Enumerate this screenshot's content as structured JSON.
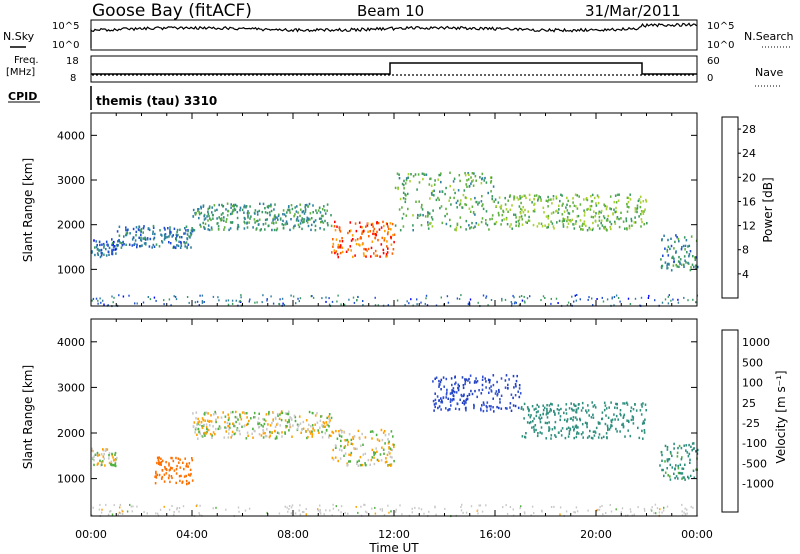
{
  "header": {
    "station": "Goose Bay (fitACF)",
    "beam": "Beam 10",
    "date": "31/Mar/2011"
  },
  "status_panel": {
    "nsky_label": "N.Sky",
    "nsky_ticks": [
      "10^5",
      "10^0"
    ],
    "nsearch_label": "N.Search",
    "nsearch_ticks": [
      "10^5",
      "10^0"
    ],
    "freq_label": "Freq.",
    "freq_unit": "[MHz]",
    "freq_ticks": [
      "18",
      "8"
    ],
    "nave_label": "Nave",
    "nave_ticks": [
      "60",
      "0"
    ],
    "cpid_label": "CPID",
    "cpid_value": "themis (tau) 3310"
  },
  "chart_data": [
    {
      "type": "heatmap",
      "title": "",
      "ylabel": "Slant Range [km]",
      "xlabel": "",
      "ylim": [
        180,
        4500
      ],
      "xlim_hours": [
        0,
        24
      ],
      "yticks": [
        "1000",
        "2000",
        "3000",
        "4000"
      ],
      "colorbar": {
        "label": "Power [dB]",
        "ticks": [
          "4",
          "8",
          "12",
          "16",
          "20",
          "24",
          "28"
        ],
        "range": [
          0,
          30
        ],
        "colors": [
          "#0000ff",
          "#1f4fd0",
          "#2f7fa0",
          "#3a9a60",
          "#60b040",
          "#a8d030",
          "#f0e020",
          "#ffa000",
          "#ff6000",
          "#ff0000"
        ]
      },
      "features": [
        {
          "x_start_hr": 0.0,
          "x_end_hr": 1.0,
          "range_km": [
            1300,
            1700
          ],
          "power_db": 6
        },
        {
          "x_start_hr": 1.0,
          "x_end_hr": 4.0,
          "range_km": [
            1500,
            2000
          ],
          "power_db": 7
        },
        {
          "x_start_hr": 4.0,
          "x_end_hr": 9.5,
          "range_km": [
            1900,
            2500
          ],
          "power_db": 10
        },
        {
          "x_start_hr": 9.5,
          "x_end_hr": 12.0,
          "range_km": [
            1300,
            2100
          ],
          "power_db": 26
        },
        {
          "x_start_hr": 12.0,
          "x_end_hr": 16.0,
          "range_km": [
            1900,
            3200
          ],
          "power_db": 12
        },
        {
          "x_start_hr": 16.0,
          "x_end_hr": 22.0,
          "range_km": [
            1900,
            2700
          ],
          "power_db": 14
        },
        {
          "x_start_hr": 22.5,
          "x_end_hr": 24.0,
          "range_km": [
            1000,
            1800
          ],
          "power_db": 9
        }
      ]
    },
    {
      "type": "heatmap",
      "title": "",
      "ylabel": "Slant Range [km]",
      "xlabel": "Time UT",
      "ylim": [
        180,
        4500
      ],
      "xlim_hours": [
        0,
        24
      ],
      "yticks": [
        "1000",
        "2000",
        "3000",
        "4000"
      ],
      "xticks": [
        "00:00",
        "04:00",
        "08:00",
        "12:00",
        "16:00",
        "20:00",
        "00:00"
      ],
      "colorbar": {
        "label": "Velocity [m s⁻¹]",
        "ticks": [
          "1000",
          "500",
          "100",
          "25",
          "-25",
          "-100",
          "-500",
          "-1000"
        ],
        "colors": [
          "#2040c0",
          "#3050d0",
          "#2f8f7f",
          "#50b040",
          "#c8c8c8",
          "#ffa000",
          "#ff7000",
          "#ff0000"
        ]
      },
      "features": [
        {
          "x_start_hr": 0.0,
          "x_end_hr": 1.0,
          "range_km": [
            1300,
            1700
          ],
          "velocity": 0
        },
        {
          "x_start_hr": 2.5,
          "x_end_hr": 4.0,
          "range_km": [
            900,
            1500
          ],
          "velocity": -300
        },
        {
          "x_start_hr": 4.0,
          "x_end_hr": 9.5,
          "range_km": [
            1900,
            2500
          ],
          "velocity": 0
        },
        {
          "x_start_hr": 9.5,
          "x_end_hr": 12.0,
          "range_km": [
            1300,
            2100
          ],
          "velocity": 0
        },
        {
          "x_start_hr": 13.5,
          "x_end_hr": 17.0,
          "range_km": [
            2500,
            3300
          ],
          "velocity": 700
        },
        {
          "x_start_hr": 17.0,
          "x_end_hr": 22.0,
          "range_km": [
            1900,
            2700
          ],
          "velocity": 200
        },
        {
          "x_start_hr": 22.5,
          "x_end_hr": 24.0,
          "range_km": [
            1000,
            1800
          ],
          "velocity": 100
        }
      ]
    }
  ]
}
